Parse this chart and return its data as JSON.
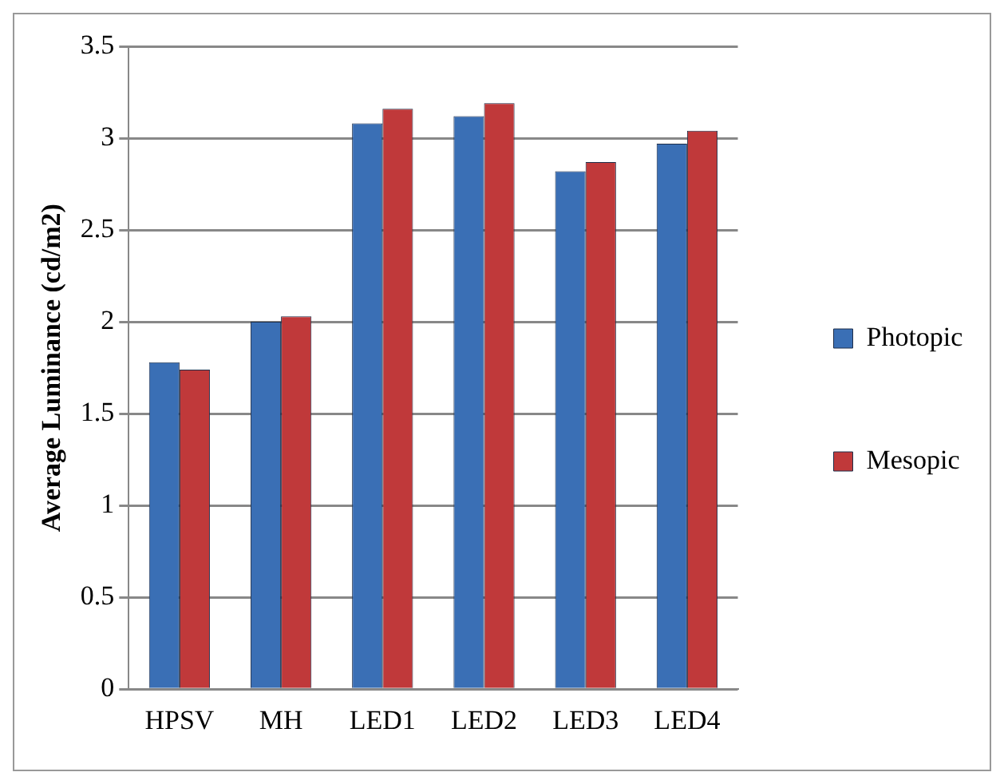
{
  "chart_data": {
    "type": "bar",
    "ylabel": "Average Luminance (cd/m2)",
    "categories": [
      "HPSV",
      "MH",
      "LED1",
      "LED2",
      "LED3",
      "LED4"
    ],
    "series": [
      {
        "name": "Photopic",
        "color": "#3a6fb5",
        "values": [
          1.78,
          2.0,
          3.08,
          3.12,
          2.82,
          2.97
        ]
      },
      {
        "name": "Mesopic",
        "color": "#c0393a",
        "values": [
          1.74,
          2.03,
          3.16,
          3.19,
          2.87,
          3.04
        ]
      }
    ],
    "ylim": [
      0,
      3.5
    ],
    "yticks": [
      0,
      0.5,
      1,
      1.5,
      2,
      2.5,
      3,
      3.5
    ],
    "grid": "y",
    "legend": "right"
  }
}
